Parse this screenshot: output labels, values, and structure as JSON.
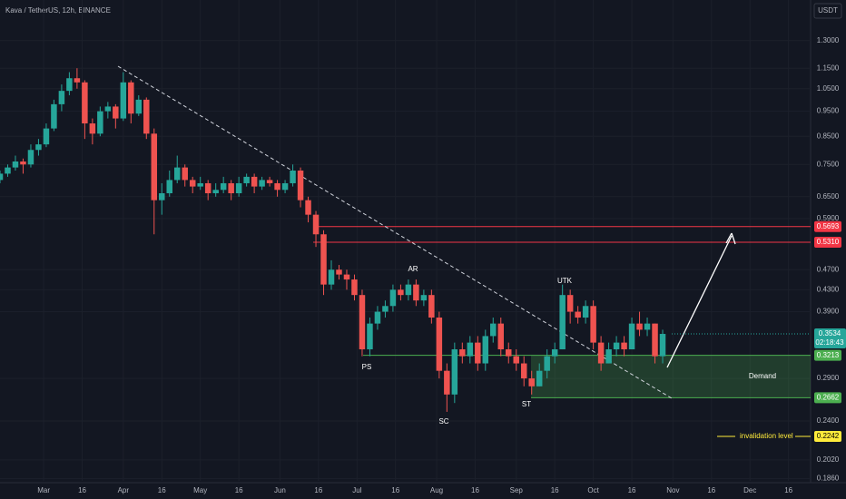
{
  "chart_data": {
    "type": "candlestick",
    "title": "Kava / TetherUS, 12h, BINANCE",
    "currency": "USDT",
    "log_scale": true,
    "grid": true,
    "up_color": "#26a69a",
    "down_color": "#ef5350",
    "xlim": [
      -17,
      298.6
    ],
    "ylim": [
      0.184,
      1.557
    ],
    "xticks": [
      {
        "value": 0,
        "label": "Mar"
      },
      {
        "value": 15,
        "label": "16"
      },
      {
        "value": 31,
        "label": "Apr"
      },
      {
        "value": 46,
        "label": "16"
      },
      {
        "value": 61,
        "label": "May"
      },
      {
        "value": 76,
        "label": "16"
      },
      {
        "value": 92,
        "label": "Jun"
      },
      {
        "value": 107,
        "label": "16"
      },
      {
        "value": 122,
        "label": "Jul"
      },
      {
        "value": 137,
        "label": "16"
      },
      {
        "value": 153,
        "label": "Aug"
      },
      {
        "value": 168,
        "label": "16"
      },
      {
        "value": 184,
        "label": "Sep"
      },
      {
        "value": 199,
        "label": "16"
      },
      {
        "value": 214,
        "label": "Oct"
      },
      {
        "value": 229,
        "label": "16"
      },
      {
        "value": 245,
        "label": "Nov"
      },
      {
        "value": 260,
        "label": "16"
      },
      {
        "value": 275,
        "label": "Dec"
      },
      {
        "value": 290,
        "label": "16"
      }
    ],
    "yticks": [
      {
        "value": 1.3,
        "label": "1.3000"
      },
      {
        "value": 1.15,
        "label": "1.1500"
      },
      {
        "value": 1.05,
        "label": "1.0500"
      },
      {
        "value": 0.95,
        "label": "0.9500"
      },
      {
        "value": 0.85,
        "label": "0.8500"
      },
      {
        "value": 0.75,
        "label": "0.7500"
      },
      {
        "value": 0.65,
        "label": "0.6500"
      },
      {
        "value": 0.59,
        "label": "0.5900"
      },
      {
        "value": 0.47,
        "label": "0.4700"
      },
      {
        "value": 0.43,
        "label": "0.4300"
      },
      {
        "value": 0.39,
        "label": "0.3900"
      },
      {
        "value": 0.29,
        "label": "0.2900"
      },
      {
        "value": 0.24,
        "label": "0.2400"
      },
      {
        "value": 0.202,
        "label": "0.2020"
      },
      {
        "value": 0.186,
        "label": "0.1860"
      }
    ],
    "x": [
      -17,
      -14,
      -11,
      -8,
      -5,
      -2,
      1,
      4,
      7,
      10,
      13,
      16,
      19,
      22,
      25,
      28,
      31,
      34,
      37,
      40,
      43,
      46,
      49,
      52,
      55,
      58,
      61,
      64,
      67,
      70,
      73,
      76,
      79,
      82,
      85,
      88,
      91,
      94,
      97,
      100,
      103,
      106,
      109,
      112,
      115,
      118,
      121,
      124,
      127,
      130,
      133,
      136,
      139,
      142,
      145,
      148,
      151,
      154,
      157,
      160,
      163,
      166,
      169,
      172,
      175,
      178,
      181,
      184,
      187,
      190,
      193,
      196,
      199,
      202,
      205,
      208,
      211,
      214,
      217,
      220,
      223,
      226,
      229,
      232,
      235,
      238,
      241
    ],
    "candles": [
      [
        0.7,
        0.73,
        0.69,
        0.72
      ],
      [
        0.72,
        0.75,
        0.71,
        0.74
      ],
      [
        0.74,
        0.78,
        0.73,
        0.76
      ],
      [
        0.76,
        0.77,
        0.72,
        0.75
      ],
      [
        0.75,
        0.82,
        0.74,
        0.8
      ],
      [
        0.8,
        0.84,
        0.78,
        0.82
      ],
      [
        0.82,
        0.9,
        0.81,
        0.88
      ],
      [
        0.88,
        1.0,
        0.87,
        0.98
      ],
      [
        0.98,
        1.07,
        0.95,
        1.04
      ],
      [
        1.04,
        1.13,
        1.02,
        1.1
      ],
      [
        1.1,
        1.15,
        1.05,
        1.08
      ],
      [
        1.08,
        1.09,
        0.84,
        0.9
      ],
      [
        0.9,
        0.92,
        0.82,
        0.86
      ],
      [
        0.86,
        0.97,
        0.85,
        0.95
      ],
      [
        0.95,
        0.99,
        0.92,
        0.97
      ],
      [
        0.97,
        0.98,
        0.88,
        0.92
      ],
      [
        0.92,
        1.13,
        0.91,
        1.08
      ],
      [
        1.08,
        1.09,
        0.9,
        0.94
      ],
      [
        0.94,
        1.02,
        0.93,
        1.0
      ],
      [
        1.0,
        1.01,
        0.84,
        0.86
      ],
      [
        0.86,
        0.88,
        0.55,
        0.64
      ],
      [
        0.64,
        0.69,
        0.6,
        0.66
      ],
      [
        0.66,
        0.73,
        0.65,
        0.7
      ],
      [
        0.7,
        0.78,
        0.69,
        0.74
      ],
      [
        0.74,
        0.75,
        0.68,
        0.7
      ],
      [
        0.7,
        0.71,
        0.66,
        0.68
      ],
      [
        0.68,
        0.71,
        0.67,
        0.69
      ],
      [
        0.69,
        0.7,
        0.64,
        0.66
      ],
      [
        0.66,
        0.69,
        0.65,
        0.67
      ],
      [
        0.67,
        0.71,
        0.66,
        0.69
      ],
      [
        0.69,
        0.7,
        0.64,
        0.66
      ],
      [
        0.66,
        0.71,
        0.65,
        0.69
      ],
      [
        0.69,
        0.72,
        0.68,
        0.71
      ],
      [
        0.71,
        0.72,
        0.66,
        0.68
      ],
      [
        0.68,
        0.71,
        0.67,
        0.7
      ],
      [
        0.7,
        0.71,
        0.68,
        0.69
      ],
      [
        0.69,
        0.7,
        0.65,
        0.67
      ],
      [
        0.67,
        0.7,
        0.66,
        0.69
      ],
      [
        0.69,
        0.75,
        0.68,
        0.73
      ],
      [
        0.73,
        0.74,
        0.62,
        0.64
      ],
      [
        0.64,
        0.65,
        0.58,
        0.6
      ],
      [
        0.6,
        0.61,
        0.52,
        0.55
      ],
      [
        0.55,
        0.56,
        0.42,
        0.44
      ],
      [
        0.44,
        0.49,
        0.43,
        0.47
      ],
      [
        0.47,
        0.48,
        0.45,
        0.46
      ],
      [
        0.46,
        0.47,
        0.43,
        0.45
      ],
      [
        0.45,
        0.46,
        0.41,
        0.42
      ],
      [
        0.42,
        0.43,
        0.32,
        0.33
      ],
      [
        0.33,
        0.38,
        0.32,
        0.37
      ],
      [
        0.37,
        0.4,
        0.36,
        0.39
      ],
      [
        0.39,
        0.41,
        0.38,
        0.4
      ],
      [
        0.4,
        0.44,
        0.39,
        0.43
      ],
      [
        0.43,
        0.44,
        0.41,
        0.42
      ],
      [
        0.42,
        0.45,
        0.41,
        0.44
      ],
      [
        0.44,
        0.45,
        0.4,
        0.41
      ],
      [
        0.41,
        0.43,
        0.4,
        0.42
      ],
      [
        0.42,
        0.43,
        0.37,
        0.38
      ],
      [
        0.38,
        0.39,
        0.29,
        0.3
      ],
      [
        0.3,
        0.31,
        0.25,
        0.27
      ],
      [
        0.27,
        0.34,
        0.26,
        0.33
      ],
      [
        0.33,
        0.34,
        0.31,
        0.32
      ],
      [
        0.32,
        0.35,
        0.31,
        0.34
      ],
      [
        0.34,
        0.35,
        0.3,
        0.31
      ],
      [
        0.31,
        0.36,
        0.3,
        0.35
      ],
      [
        0.35,
        0.38,
        0.34,
        0.37
      ],
      [
        0.37,
        0.38,
        0.32,
        0.33
      ],
      [
        0.33,
        0.34,
        0.31,
        0.32
      ],
      [
        0.32,
        0.33,
        0.3,
        0.31
      ],
      [
        0.31,
        0.32,
        0.28,
        0.29
      ],
      [
        0.29,
        0.3,
        0.27,
        0.28
      ],
      [
        0.28,
        0.31,
        0.28,
        0.3
      ],
      [
        0.3,
        0.33,
        0.29,
        0.32
      ],
      [
        0.32,
        0.34,
        0.31,
        0.33
      ],
      [
        0.33,
        0.44,
        0.33,
        0.42
      ],
      [
        0.42,
        0.43,
        0.37,
        0.39
      ],
      [
        0.39,
        0.4,
        0.37,
        0.38
      ],
      [
        0.38,
        0.41,
        0.37,
        0.4
      ],
      [
        0.4,
        0.41,
        0.33,
        0.34
      ],
      [
        0.34,
        0.35,
        0.3,
        0.31
      ],
      [
        0.31,
        0.34,
        0.31,
        0.33
      ],
      [
        0.33,
        0.35,
        0.32,
        0.34
      ],
      [
        0.34,
        0.35,
        0.32,
        0.33
      ],
      [
        0.33,
        0.38,
        0.33,
        0.37
      ],
      [
        0.37,
        0.39,
        0.35,
        0.36
      ],
      [
        0.36,
        0.38,
        0.35,
        0.37
      ],
      [
        0.37,
        0.37,
        0.31,
        0.32
      ],
      [
        0.32,
        0.36,
        0.31,
        0.3534
      ]
    ],
    "last_price": {
      "value": 0.3534,
      "label": "0.3534",
      "color": "#26a69a"
    },
    "countdown": "02:18:43",
    "levels": [
      {
        "value": 0.5693,
        "label": "0.5693",
        "color": "#f23645"
      },
      {
        "value": 0.531,
        "label": "0.5310",
        "color": "#f23645"
      },
      {
        "value": 0.3213,
        "label": "0.3213",
        "color": "#4caf50"
      },
      {
        "value": 0.2662,
        "label": "0.2662",
        "color": "#4caf50"
      },
      {
        "value": 0.2242,
        "label": "0.2242",
        "color": "#ffeb3b"
      }
    ],
    "zone_label": "Demand",
    "invalidation_label": "invalidation level",
    "annotations": [
      "PS",
      "AR",
      "SC",
      "ST",
      "UTK"
    ]
  }
}
